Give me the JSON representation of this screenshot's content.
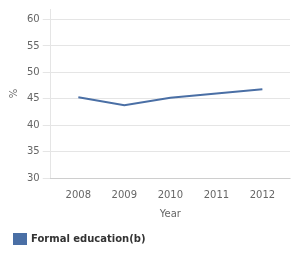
{
  "chart_data": {
    "type": "line",
    "x": [
      2008,
      2009,
      2010,
      2011,
      2012
    ],
    "series": [
      {
        "name": "Formal education(b)",
        "color": "#4a6fa5",
        "values": [
          45.3,
          43.8,
          45.2,
          46.0,
          46.8
        ]
      }
    ],
    "x_label": "Year",
    "y_label": "%",
    "xlim": [
      2007.4,
      2012.6
    ],
    "xticks": [
      2008,
      2009,
      2010,
      2011,
      2012
    ],
    "ylim": [
      30,
      62
    ],
    "yticks": [
      30,
      35,
      40,
      45,
      50,
      55,
      60
    ],
    "grid": "y",
    "legend": "lower left"
  }
}
